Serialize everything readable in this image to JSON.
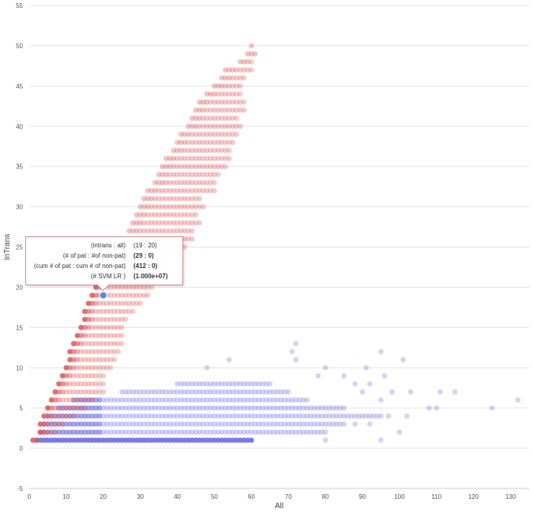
{
  "chart_data": {
    "type": "scatter",
    "title": "",
    "xlabel": "All",
    "ylabel": "InTrans",
    "xlim": [
      0,
      135
    ],
    "ylim": [
      -5,
      55
    ],
    "xticks": [
      0,
      10,
      20,
      30,
      40,
      50,
      60,
      70,
      80,
      90,
      100,
      110,
      120,
      130
    ],
    "yticks": [
      -5,
      0,
      5,
      10,
      15,
      20,
      25,
      30,
      35,
      40,
      45,
      50,
      55
    ],
    "grid": "horizontal",
    "colors": {
      "red": "#e05555",
      "blue": "#6f6fe8",
      "highlight": "#3f7fd6"
    },
    "red_runs": [
      [
        1,
        1,
        2
      ],
      [
        2,
        3,
        7
      ],
      [
        3,
        3,
        9
      ],
      [
        4,
        4,
        12
      ],
      [
        5,
        5,
        15
      ],
      [
        6,
        6,
        17
      ],
      [
        7,
        7,
        20
      ],
      [
        8,
        8,
        20
      ],
      [
        9,
        9,
        20
      ],
      [
        10,
        10,
        22
      ],
      [
        11,
        11,
        23
      ],
      [
        12,
        11,
        24
      ],
      [
        13,
        12,
        25
      ],
      [
        14,
        13,
        25
      ],
      [
        15,
        14,
        25
      ],
      [
        16,
        15,
        26
      ],
      [
        17,
        15,
        28
      ],
      [
        18,
        16,
        30
      ],
      [
        19,
        17,
        32
      ],
      [
        20,
        18,
        33
      ],
      [
        21,
        20,
        32
      ],
      [
        22,
        21,
        36
      ],
      [
        23,
        22,
        38
      ],
      [
        24,
        23,
        40
      ],
      [
        25,
        24,
        42
      ],
      [
        26,
        25,
        44
      ],
      [
        27,
        27,
        44
      ],
      [
        28,
        28,
        46
      ],
      [
        29,
        29,
        45
      ],
      [
        30,
        30,
        47
      ],
      [
        31,
        31,
        46
      ],
      [
        32,
        32,
        50
      ],
      [
        33,
        34,
        50
      ],
      [
        34,
        35,
        51
      ],
      [
        35,
        36,
        53
      ],
      [
        36,
        37,
        54
      ],
      [
        37,
        39,
        54
      ],
      [
        38,
        40,
        55
      ],
      [
        39,
        41,
        56
      ],
      [
        40,
        43,
        57
      ],
      [
        41,
        44,
        56
      ],
      [
        42,
        45,
        58
      ],
      [
        43,
        46,
        58
      ],
      [
        44,
        48,
        57
      ],
      [
        45,
        50,
        57
      ],
      [
        46,
        52,
        58
      ],
      [
        47,
        53,
        60
      ],
      [
        48,
        57,
        60
      ],
      [
        49,
        59,
        61
      ],
      [
        50,
        60,
        60
      ]
    ],
    "blue_runs": [
      [
        1,
        2,
        60
      ],
      [
        2,
        3,
        80
      ],
      [
        3,
        4,
        85
      ],
      [
        4,
        5,
        95
      ],
      [
        5,
        8,
        85
      ],
      [
        6,
        12,
        75
      ],
      [
        7,
        25,
        70
      ],
      [
        8,
        40,
        65
      ]
    ],
    "blue_scatter": [
      [
        80,
        1
      ],
      [
        95,
        1
      ],
      [
        100,
        2
      ],
      [
        88,
        3
      ],
      [
        92,
        3
      ],
      [
        97,
        4
      ],
      [
        102,
        4
      ],
      [
        108,
        5
      ],
      [
        110,
        5
      ],
      [
        125,
        5
      ],
      [
        132,
        6
      ],
      [
        95,
        6
      ],
      [
        90,
        7
      ],
      [
        98,
        7
      ],
      [
        103,
        7
      ],
      [
        111,
        7
      ],
      [
        115,
        7
      ],
      [
        88,
        8
      ],
      [
        92,
        8
      ],
      [
        78,
        9
      ],
      [
        85,
        9
      ],
      [
        96,
        9
      ],
      [
        80,
        10
      ],
      [
        91,
        10
      ],
      [
        72,
        11
      ],
      [
        101,
        11
      ],
      [
        71,
        12
      ],
      [
        95,
        12
      ],
      [
        72,
        13
      ],
      [
        48,
        10
      ],
      [
        54,
        11
      ]
    ],
    "highlight_point": {
      "x": 20,
      "y": 19
    }
  },
  "tooltip": {
    "rows": [
      {
        "label": "(intrans : all)",
        "value": "(19 : 20)",
        "bold": false
      },
      {
        "label": "(# of pat : #of non-pat)",
        "value": "(29 : 0)",
        "bold": true
      },
      {
        "label": "(cum # of pat : cum # of non-pat)",
        "value": "(412 : 0)",
        "bold": true
      },
      {
        "label": "(# SVM LR )",
        "value": "(1.000e+07)",
        "bold": true
      }
    ]
  }
}
